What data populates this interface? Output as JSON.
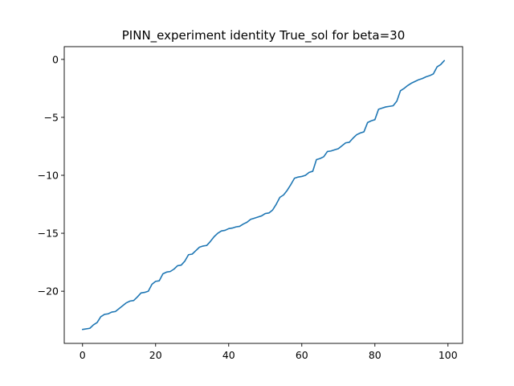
{
  "chart_data": {
    "type": "line",
    "title": "PINN_experiment identity True_sol for beta=30",
    "xlabel": "",
    "ylabel": "",
    "xlim": [
      -5,
      104
    ],
    "ylim": [
      -24.5,
      1.1
    ],
    "xticks": [
      0,
      20,
      40,
      60,
      80,
      100
    ],
    "yticks": [
      0,
      -5,
      -10,
      -15,
      -20
    ],
    "ytick_labels": [
      "0",
      "−5",
      "−10",
      "−15",
      "−20"
    ],
    "grid": false,
    "line_color": "#1f77b4",
    "series": [
      {
        "values": [
          [
            0,
            -23.3
          ],
          [
            2,
            -23.2
          ],
          [
            3,
            -22.9
          ],
          [
            4,
            -22.7
          ],
          [
            5,
            -22.2
          ],
          [
            6,
            -22.0
          ],
          [
            7,
            -21.95
          ],
          [
            8,
            -21.8
          ],
          [
            9,
            -21.75
          ],
          [
            10,
            -21.5
          ],
          [
            11,
            -21.25
          ],
          [
            12,
            -21.0
          ],
          [
            13,
            -20.85
          ],
          [
            14,
            -20.8
          ],
          [
            15,
            -20.5
          ],
          [
            16,
            -20.15
          ],
          [
            17,
            -20.1
          ],
          [
            18,
            -20.0
          ],
          [
            19,
            -19.4
          ],
          [
            20,
            -19.15
          ],
          [
            21,
            -19.1
          ],
          [
            22,
            -18.5
          ],
          [
            23,
            -18.35
          ],
          [
            24,
            -18.3
          ],
          [
            25,
            -18.1
          ],
          [
            26,
            -17.8
          ],
          [
            27,
            -17.75
          ],
          [
            28,
            -17.4
          ],
          [
            29,
            -16.85
          ],
          [
            30,
            -16.8
          ],
          [
            31,
            -16.5
          ],
          [
            32,
            -16.2
          ],
          [
            33,
            -16.1
          ],
          [
            34,
            -16.05
          ],
          [
            35,
            -15.7
          ],
          [
            36,
            -15.3
          ],
          [
            37,
            -15.0
          ],
          [
            38,
            -14.8
          ],
          [
            39,
            -14.75
          ],
          [
            40,
            -14.6
          ],
          [
            41,
            -14.55
          ],
          [
            42,
            -14.45
          ],
          [
            43,
            -14.4
          ],
          [
            44,
            -14.2
          ],
          [
            45,
            -14.05
          ],
          [
            46,
            -13.8
          ],
          [
            47,
            -13.7
          ],
          [
            48,
            -13.6
          ],
          [
            49,
            -13.5
          ],
          [
            50,
            -13.3
          ],
          [
            51,
            -13.25
          ],
          [
            52,
            -13.0
          ],
          [
            53,
            -12.5
          ],
          [
            54,
            -11.9
          ],
          [
            55,
            -11.7
          ],
          [
            56,
            -11.3
          ],
          [
            57,
            -10.8
          ],
          [
            58,
            -10.25
          ],
          [
            59,
            -10.15
          ],
          [
            60,
            -10.1
          ],
          [
            61,
            -10.0
          ],
          [
            62,
            -9.75
          ],
          [
            63,
            -9.65
          ],
          [
            64,
            -8.65
          ],
          [
            65,
            -8.55
          ],
          [
            66,
            -8.4
          ],
          [
            67,
            -7.95
          ],
          [
            68,
            -7.9
          ],
          [
            69,
            -7.8
          ],
          [
            70,
            -7.7
          ],
          [
            71,
            -7.45
          ],
          [
            72,
            -7.2
          ],
          [
            73,
            -7.15
          ],
          [
            74,
            -6.8
          ],
          [
            75,
            -6.5
          ],
          [
            76,
            -6.35
          ],
          [
            77,
            -6.25
          ],
          [
            78,
            -5.45
          ],
          [
            79,
            -5.3
          ],
          [
            80,
            -5.2
          ],
          [
            81,
            -4.3
          ],
          [
            82,
            -4.2
          ],
          [
            83,
            -4.1
          ],
          [
            84,
            -4.05
          ],
          [
            85,
            -4.0
          ],
          [
            86,
            -3.6
          ],
          [
            87,
            -2.7
          ],
          [
            88,
            -2.5
          ],
          [
            89,
            -2.25
          ],
          [
            90,
            -2.05
          ],
          [
            91,
            -1.9
          ],
          [
            92,
            -1.75
          ],
          [
            93,
            -1.65
          ],
          [
            94,
            -1.5
          ],
          [
            95,
            -1.4
          ],
          [
            96,
            -1.25
          ],
          [
            97,
            -0.65
          ],
          [
            98,
            -0.45
          ],
          [
            99,
            -0.1
          ]
        ]
      }
    ]
  }
}
